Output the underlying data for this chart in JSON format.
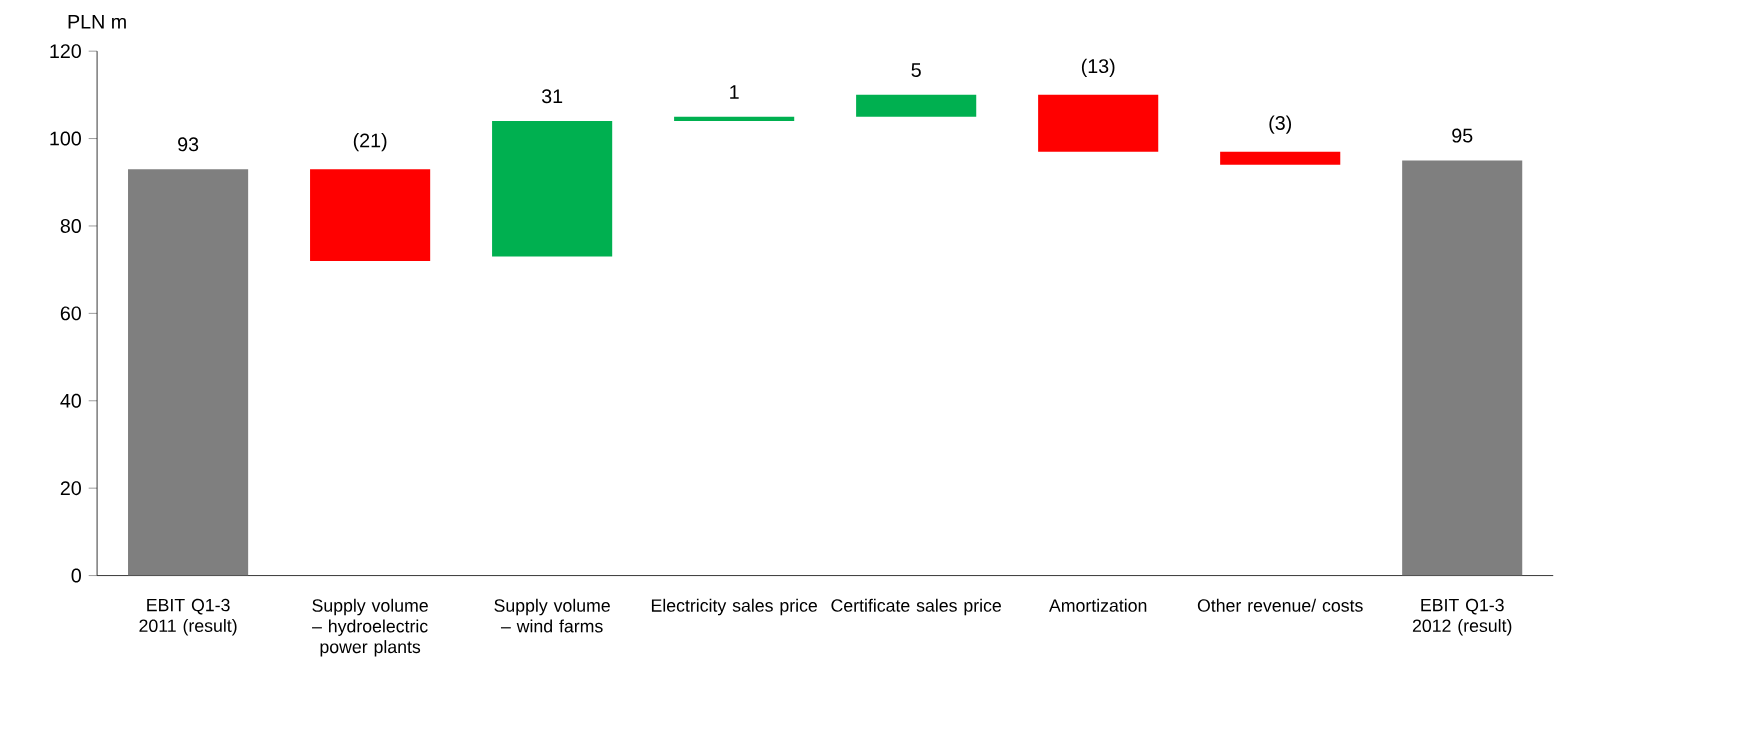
{
  "chart_data": {
    "type": "bar",
    "ylabel": "PLN m",
    "categories": [
      "EBIT Q1-3 2011 (result)",
      "Supply volume – hydroelectric power plants",
      "Supply volume – wind farms",
      "Electricity sales price",
      "Certificate sales price",
      "Amortization",
      "Other revenue/ costs",
      "EBIT Q1-3 2012 (result)"
    ],
    "values": [
      93,
      -21,
      31,
      1,
      5,
      -13,
      -3,
      95
    ],
    "base": [
      0,
      93,
      73,
      104,
      105,
      110,
      97,
      0
    ],
    "colors": [
      "#7f7f7f",
      "#ff0000",
      "#00b050",
      "#00b050",
      "#00b050",
      "#ff0000",
      "#ff0000",
      "#7f7f7f"
    ],
    "value_labels": [
      "93",
      "(21)",
      "31",
      "1",
      "5",
      "(13)",
      "(3)",
      "95"
    ],
    "ylim": [
      0,
      120
    ],
    "yticks": [
      0,
      20,
      40,
      60,
      80,
      100,
      120
    ]
  }
}
